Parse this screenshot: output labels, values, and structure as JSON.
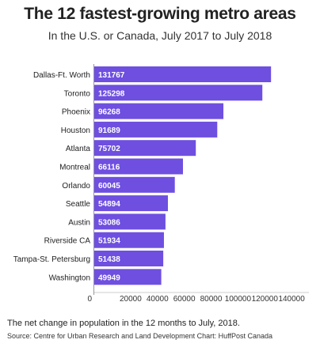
{
  "header": {
    "title": "The 12 fastest-growing metro areas",
    "subtitle": "In the U.S. or Canada, July 2017 to July 2018"
  },
  "chart_data": {
    "type": "bar",
    "orientation": "horizontal",
    "categories": [
      "Dallas-Ft. Worth",
      "Toronto",
      "Phoenix",
      "Houston",
      "Atlanta",
      "Montreal",
      "Orlando",
      "Seattle",
      "Austin",
      "Riverside CA",
      "Tampa-St. Petersburg",
      "Washington"
    ],
    "values": [
      131767,
      125298,
      96268,
      91689,
      75702,
      66116,
      60045,
      54894,
      53086,
      51934,
      51438,
      49949
    ],
    "value_labels": [
      "131767",
      "125298",
      "96268",
      "91689",
      "75702",
      "66116",
      "60045",
      "54894",
      "53086",
      "51934",
      "51438",
      "49949"
    ],
    "xlim": [
      0,
      160000
    ],
    "xticks": [
      0,
      20000,
      40000,
      60000,
      80000,
      100000,
      120000,
      140000
    ],
    "xtick_labels": [
      "0",
      "20000",
      "40000",
      "60000",
      "80000",
      "100000",
      "120000",
      "140000"
    ],
    "bar_color": "#6e4fe0",
    "label_color": "#ffffff",
    "grid": false,
    "legend": "none"
  },
  "footer": {
    "note": "The net change in population in the 12 months to July, 2018.",
    "source": "Source: Centre for Urban Research and Land Development   Chart: HuffPost Canada"
  }
}
